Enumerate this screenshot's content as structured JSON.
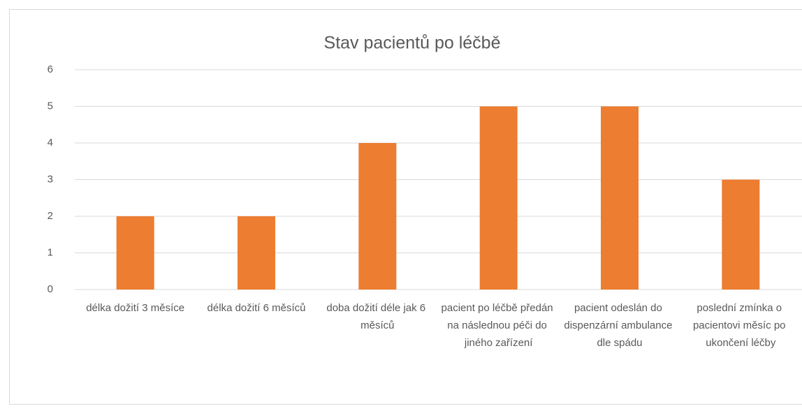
{
  "chart_data": {
    "type": "bar",
    "title": "Stav pacientů po léčbě",
    "categories": [
      "délka dožití 3 měsíce",
      "délka dožití 6 měsíců",
      "doba dožití déle jak 6 měsíců",
      "pacient po léčbě předán na následnou péči do jiného zařízení",
      "pacient odeslán do dispenzární ambulance dle spádu",
      "poslední zmínka o pacientovi měsíc po ukončení léčby"
    ],
    "values": [
      2,
      2,
      4,
      5,
      5,
      3
    ],
    "color": "#ed7d31",
    "ylim": [
      0,
      6
    ],
    "yticks": [
      0,
      1,
      2,
      3,
      4,
      5,
      6
    ],
    "grid": true
  }
}
